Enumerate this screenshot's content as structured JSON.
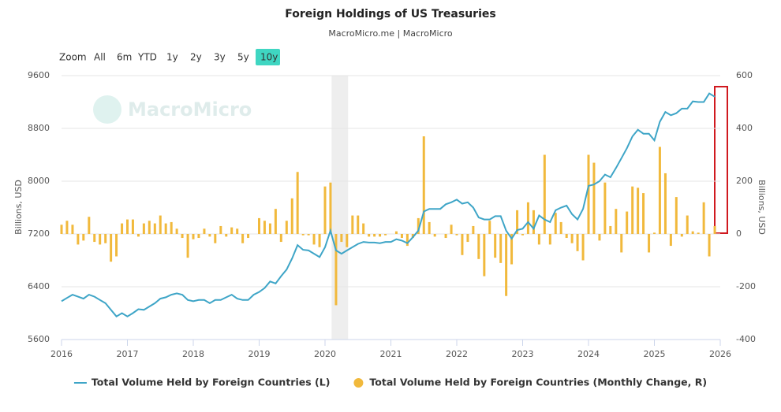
{
  "chart_data": {
    "type": "combo",
    "title": "Foreign Holdings of US Treasuries",
    "subtitle": "MacroMicro.me | MacroMicro",
    "watermark": "MacroMicro",
    "range_selector": {
      "label": "Zoom",
      "buttons": [
        "All",
        "6m",
        "YTD",
        "1y",
        "2y",
        "3y",
        "5y",
        "10y"
      ],
      "active": 7
    },
    "y_label": "Billions, USD",
    "y2_label": "Billions, USD",
    "xlim": [
      2016,
      2026
    ],
    "xticks": [
      2016,
      2017,
      2018,
      2019,
      2020,
      2021,
      2022,
      2023,
      2024,
      2025,
      2026
    ],
    "ylim": [
      5600,
      9600
    ],
    "yticks": [
      5600,
      6400,
      7200,
      8000,
      8800,
      9600
    ],
    "y2lim": [
      -400,
      600
    ],
    "y2ticks": [
      -400,
      -200,
      0,
      200,
      400,
      600
    ],
    "grid": true,
    "legend": "bottom",
    "shaded_regions": [
      [
        2020.1,
        2020.35
      ]
    ],
    "x": [
      2016,
      2016.083,
      2016.167,
      2016.25,
      2016.333,
      2016.417,
      2016.5,
      2016.583,
      2016.667,
      2016.75,
      2016.833,
      2016.917,
      2017,
      2017.083,
      2017.167,
      2017.25,
      2017.333,
      2017.417,
      2017.5,
      2017.583,
      2017.667,
      2017.75,
      2017.833,
      2017.917,
      2018,
      2018.083,
      2018.167,
      2018.25,
      2018.333,
      2018.417,
      2018.5,
      2018.583,
      2018.667,
      2018.75,
      2018.833,
      2018.917,
      2019,
      2019.083,
      2019.167,
      2019.25,
      2019.333,
      2019.417,
      2019.5,
      2019.583,
      2019.667,
      2019.75,
      2019.833,
      2019.917,
      2020,
      2020.083,
      2020.167,
      2020.25,
      2020.333,
      2020.417,
      2020.5,
      2020.583,
      2020.667,
      2020.75,
      2020.833,
      2020.917,
      2021,
      2021.083,
      2021.167,
      2021.25,
      2021.333,
      2021.417,
      2021.5,
      2021.583,
      2021.667,
      2021.75,
      2021.833,
      2021.917,
      2022,
      2022.083,
      2022.167,
      2022.25,
      2022.333,
      2022.417,
      2022.5,
      2022.583,
      2022.667,
      2022.75,
      2022.833,
      2022.917,
      2023,
      2023.083,
      2023.167,
      2023.25,
      2023.333,
      2023.417,
      2023.5,
      2023.583,
      2023.667,
      2023.75,
      2023.833,
      2023.917,
      2024,
      2024.083,
      2024.167,
      2024.25,
      2024.333,
      2024.417,
      2024.5,
      2024.583,
      2024.667,
      2024.75,
      2024.833,
      2024.917,
      2025,
      2025.083,
      2025.167,
      2025.25,
      2025.333,
      2025.417,
      2025.5,
      2025.583,
      2025.667,
      2025.75,
      2025.833,
      2025.917
    ],
    "series": [
      {
        "name": "Total Volume Held by Foreign Countries (L)",
        "type": "line",
        "color": "#3ea5c7",
        "values": [
          6180,
          6230,
          6280,
          6250,
          6220,
          6280,
          6250,
          6200,
          6150,
          6050,
          5950,
          6000,
          5950,
          6000,
          6060,
          6050,
          6100,
          6150,
          6220,
          6240,
          6280,
          6300,
          6280,
          6200,
          6180,
          6200,
          6200,
          6150,
          6200,
          6200,
          6240,
          6280,
          6220,
          6200,
          6200,
          6280,
          6320,
          6380,
          6480,
          6450,
          6560,
          6660,
          6830,
          7030,
          6960,
          6950,
          6900,
          6850,
          7000,
          7250,
          6950,
          6900,
          6950,
          7000,
          7050,
          7080,
          7070,
          7070,
          7060,
          7080,
          7080,
          7120,
          7100,
          7060,
          7150,
          7250,
          7540,
          7580,
          7580,
          7580,
          7650,
          7680,
          7720,
          7660,
          7680,
          7600,
          7450,
          7420,
          7420,
          7470,
          7470,
          7250,
          7130,
          7260,
          7280,
          7380,
          7280,
          7480,
          7420,
          7380,
          7560,
          7600,
          7630,
          7500,
          7420,
          7580,
          7930,
          7950,
          8000,
          8100,
          8060,
          8200,
          8350,
          8500,
          8680,
          8780,
          8720,
          8720,
          8620,
          8900,
          9050,
          9000,
          9030,
          9100,
          9100,
          9210,
          9200,
          9200,
          9330,
          9280
        ]
      },
      {
        "name": "Total Volume Held by Foreign Countries (Monthly Change, R)",
        "type": "bar",
        "axis": "y2",
        "color": "#f1b93c",
        "values": [
          35,
          50,
          35,
          -40,
          -25,
          65,
          -30,
          -40,
          -35,
          -105,
          -85,
          40,
          55,
          55,
          -10,
          40,
          50,
          40,
          70,
          40,
          45,
          20,
          -15,
          -90,
          -20,
          -15,
          20,
          -10,
          -35,
          30,
          -10,
          25,
          20,
          -35,
          -15,
          0,
          60,
          50,
          40,
          95,
          -30,
          50,
          135,
          235,
          -5,
          -5,
          -40,
          -50,
          180,
          195,
          -270,
          -30,
          -50,
          70,
          70,
          40,
          -10,
          -10,
          -10,
          -5,
          0,
          10,
          -15,
          -45,
          -15,
          60,
          370,
          45,
          -10,
          0,
          -15,
          35,
          -5,
          -80,
          -30,
          30,
          -95,
          -160,
          50,
          -90,
          -110,
          -235,
          -115,
          90,
          -5,
          120,
          90,
          -40,
          300,
          -40,
          80,
          45,
          -15,
          -35,
          -65,
          -100,
          300,
          270,
          -25,
          195,
          30,
          95,
          -70,
          85,
          180,
          175,
          155,
          -70,
          5,
          330,
          230,
          -45,
          140,
          -10,
          70,
          10,
          5,
          120,
          -85,
          30
        ]
      }
    ]
  }
}
